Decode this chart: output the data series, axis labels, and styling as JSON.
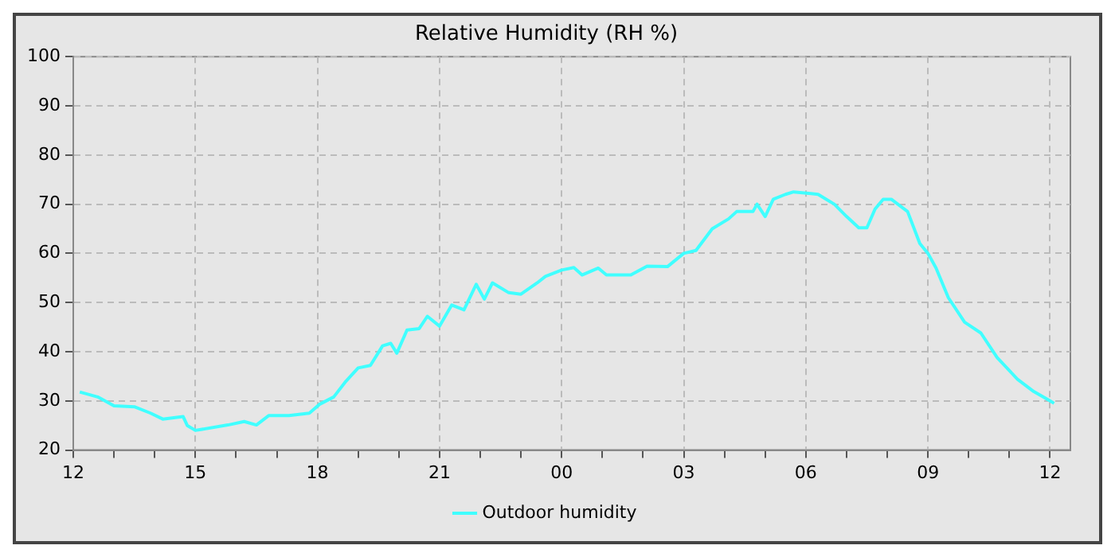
{
  "chart_data": {
    "type": "line",
    "title": "Relative Humidity (RH %)",
    "xlim": [
      12,
      36.5
    ],
    "ylim": [
      20,
      100
    ],
    "xticks": [
      {
        "value": 12,
        "label": "12"
      },
      {
        "value": 13,
        "label": null
      },
      {
        "value": 14,
        "label": null
      },
      {
        "value": 15,
        "label": "15"
      },
      {
        "value": 16,
        "label": null
      },
      {
        "value": 17,
        "label": null
      },
      {
        "value": 18,
        "label": "18"
      },
      {
        "value": 19,
        "label": null
      },
      {
        "value": 20,
        "label": null
      },
      {
        "value": 21,
        "label": "21"
      },
      {
        "value": 22,
        "label": null
      },
      {
        "value": 23,
        "label": null
      },
      {
        "value": 24,
        "label": "00"
      },
      {
        "value": 25,
        "label": null
      },
      {
        "value": 26,
        "label": null
      },
      {
        "value": 27,
        "label": "03"
      },
      {
        "value": 28,
        "label": null
      },
      {
        "value": 29,
        "label": null
      },
      {
        "value": 30,
        "label": "06"
      },
      {
        "value": 31,
        "label": null
      },
      {
        "value": 32,
        "label": null
      },
      {
        "value": 33,
        "label": "09"
      },
      {
        "value": 34,
        "label": null
      },
      {
        "value": 35,
        "label": null
      },
      {
        "value": 36,
        "label": "12"
      }
    ],
    "yticks": [
      20,
      30,
      40,
      50,
      60,
      70,
      80,
      90,
      100
    ],
    "grid": true,
    "legend": "bottom",
    "marker": "none",
    "line_style": "solid",
    "series": [
      {
        "name": "Outdoor humidity",
        "color": "#40ffff",
        "x": [
          12.16,
          12.6,
          13.0,
          13.5,
          13.9,
          14.2,
          14.7,
          14.8,
          15.0,
          15.8,
          16.2,
          16.5,
          16.8,
          17.3,
          17.8,
          18.05,
          18.4,
          18.7,
          19.0,
          19.3,
          19.6,
          19.8,
          19.95,
          20.2,
          20.5,
          20.7,
          21.0,
          21.3,
          21.6,
          21.9,
          22.1,
          22.3,
          22.7,
          23.0,
          23.4,
          23.6,
          24.0,
          24.3,
          24.5,
          24.9,
          25.1,
          25.7,
          26.1,
          26.6,
          27.0,
          27.3,
          27.7,
          28.1,
          28.3,
          28.7,
          28.8,
          29.0,
          29.2,
          29.5,
          29.7,
          30.3,
          30.7,
          31.0,
          31.3,
          31.5,
          31.7,
          31.9,
          32.1,
          32.5,
          32.8,
          33.0,
          33.2,
          33.5,
          33.9,
          34.3,
          34.7,
          35.2,
          35.6,
          36.0,
          36.1
        ],
        "values": [
          31.8,
          30.8,
          29,
          28.8,
          27.5,
          26.3,
          26.8,
          25,
          24,
          25.1,
          25.8,
          25.1,
          27,
          27,
          27.5,
          29.3,
          30.8,
          34,
          36.7,
          37.2,
          41.2,
          41.7,
          39.7,
          44.4,
          44.7,
          47.2,
          45.2,
          49.5,
          48.5,
          53.7,
          50.7,
          54,
          52,
          51.7,
          54,
          55.3,
          56.6,
          57.1,
          55.6,
          57,
          55.6,
          55.6,
          57.4,
          57.3,
          60,
          60.6,
          65,
          67,
          68.5,
          68.5,
          70,
          67.5,
          71,
          72,
          72.5,
          72,
          70,
          67.5,
          65.2,
          65.2,
          69,
          71,
          71,
          68.5,
          62,
          60,
          57,
          51,
          46,
          43.8,
          38.8,
          34.4,
          31.9,
          30,
          29.5
        ]
      }
    ]
  }
}
